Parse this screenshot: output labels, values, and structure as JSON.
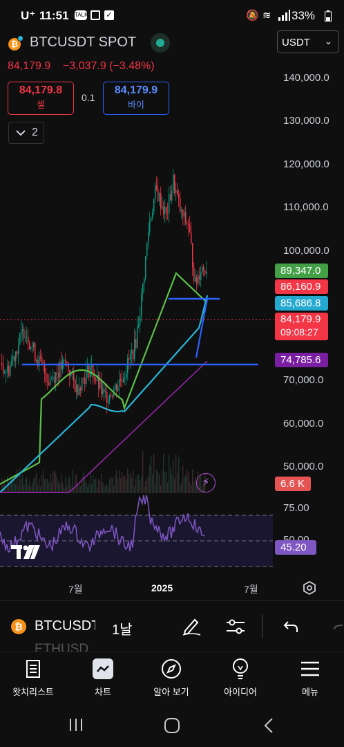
{
  "status_bar": {
    "carrier": "U⁺",
    "time": "11:51",
    "battery": "33%"
  },
  "header": {
    "symbol": "BTCUSDT SPOT",
    "currency": "USDT",
    "last_price": "84,179.9",
    "change": "−3,037.9 (−3.48%)",
    "sell_price": "84,179.8",
    "sell_label": "셀",
    "spread": "0.1",
    "buy_price": "84,179.9",
    "buy_label": "바이",
    "indicators_count": "2"
  },
  "price_axis": {
    "labels": [
      "140,000.0",
      "130,000.0",
      "120,000.0",
      "110,000.0",
      "100,000.0",
      "70,000.0",
      "60,000.0",
      "50,000.0"
    ],
    "tags": {
      "green": "89,347.0",
      "red": "86,160.9",
      "cyan": "85,686.8",
      "last": "84,179.9",
      "countdown": "09:08:27",
      "purple": "74,785.6",
      "volume": "6.6 K"
    }
  },
  "rsi_axis": {
    "top": "75.00",
    "mid": "50.00",
    "value": "45.20"
  },
  "time_axis": {
    "labels": [
      "7월",
      "2025",
      "7월"
    ]
  },
  "toolbar": {
    "symbol": "BTCUSDT",
    "interval": "1날",
    "overlay_symbol": "ETHUSD"
  },
  "bottom_nav": {
    "items": [
      {
        "label": "왓치리스트"
      },
      {
        "label": "차트"
      },
      {
        "label": "알아 보기"
      },
      {
        "label": "아이디어"
      },
      {
        "label": "메뉴"
      }
    ]
  },
  "colors": {
    "bg": "#0f0f0f",
    "up": "#089981",
    "down": "#f23645",
    "ma_green": "#5cbf4a",
    "ma_cyan": "#29b6d8",
    "ma_purple": "#9c27b0",
    "hline": "#2962ff",
    "rsi": "#7e57c2"
  }
}
